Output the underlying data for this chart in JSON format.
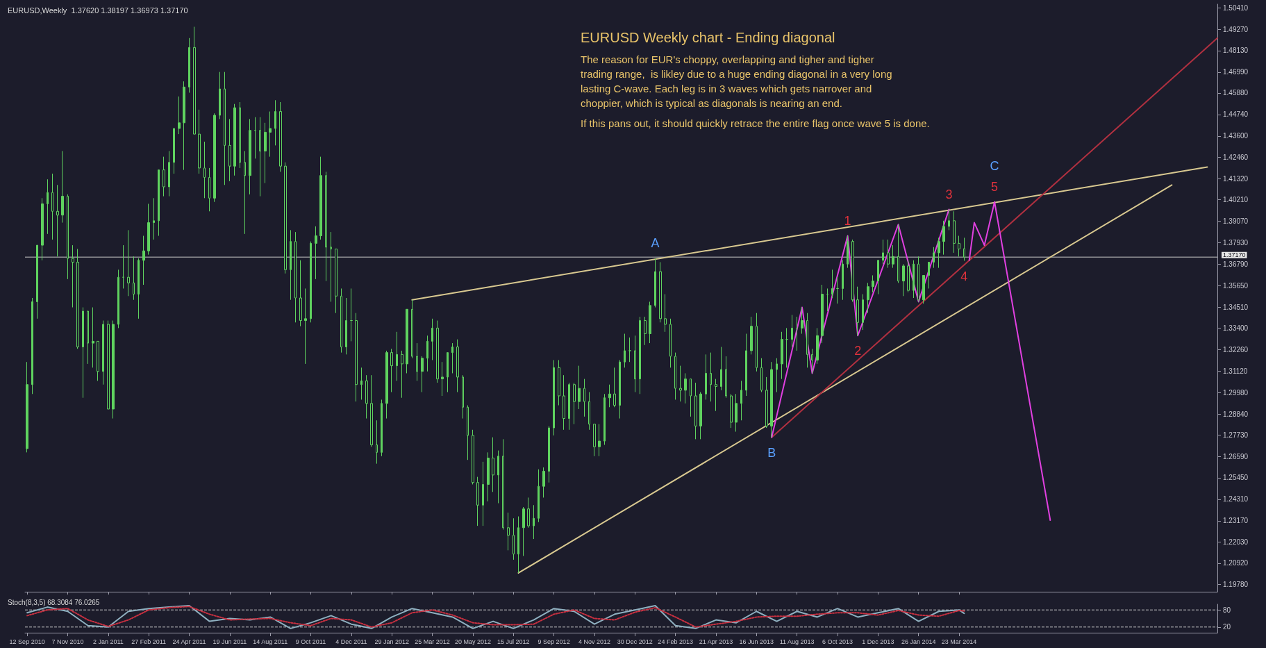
{
  "chart_data": [
    {
      "type": "candlestick",
      "title": "EURUSD,Weekly  1.37620 1.38197 1.36973 1.37170",
      "color": "#5fd35f",
      "marker": "none",
      "tick_labels": "y",
      "x": [
        "2010-09-12",
        "2010-09-19",
        "2010-09-26",
        "2010-10-03",
        "2010-10-10",
        "2010-10-17",
        "2010-10-24",
        "2010-10-31",
        "2010-11-07",
        "2010-11-14",
        "2010-11-21",
        "2010-11-28",
        "2010-12-05",
        "2010-12-12",
        "2010-12-19",
        "2010-12-26",
        "2011-01-02",
        "2011-01-09",
        "2011-01-16",
        "2011-01-23",
        "2011-01-30",
        "2011-02-06",
        "2011-02-13",
        "2011-02-20",
        "2011-02-27",
        "2011-03-06",
        "2011-03-13",
        "2011-03-20",
        "2011-03-27",
        "2011-04-03",
        "2011-04-10",
        "2011-04-17",
        "2011-04-24",
        "2011-05-01",
        "2011-05-08",
        "2011-05-15",
        "2011-05-22",
        "2011-05-29",
        "2011-06-05",
        "2011-06-12",
        "2011-06-19",
        "2011-06-26",
        "2011-07-03",
        "2011-07-10",
        "2011-07-17",
        "2011-07-24",
        "2011-07-31",
        "2011-08-07",
        "2011-08-14",
        "2011-08-21",
        "2011-08-28",
        "2011-09-04",
        "2011-09-11",
        "2011-09-18",
        "2011-09-25",
        "2011-10-02",
        "2011-10-09",
        "2011-10-16",
        "2011-10-23",
        "2011-10-30",
        "2011-11-06",
        "2011-11-13",
        "2011-11-20",
        "2011-11-27",
        "2011-12-04",
        "2011-12-11",
        "2011-12-18",
        "2011-12-25",
        "2012-01-01",
        "2012-01-08",
        "2012-01-15",
        "2012-01-22",
        "2012-01-29",
        "2012-02-05",
        "2012-02-12",
        "2012-02-19",
        "2012-02-26",
        "2012-03-04",
        "2012-03-11",
        "2012-03-18",
        "2012-03-25",
        "2012-04-01",
        "2012-04-08",
        "2012-04-15",
        "2012-04-22",
        "2012-04-29",
        "2012-05-06",
        "2012-05-13",
        "2012-05-20",
        "2012-05-27",
        "2012-06-03",
        "2012-06-10",
        "2012-06-17",
        "2012-06-24",
        "2012-07-01",
        "2012-07-08",
        "2012-07-15",
        "2012-07-22",
        "2012-07-29",
        "2012-08-05",
        "2012-08-12",
        "2012-08-19",
        "2012-08-26",
        "2012-09-02",
        "2012-09-09",
        "2012-09-16",
        "2012-09-23",
        "2012-09-30",
        "2012-10-07",
        "2012-10-14",
        "2012-10-21",
        "2012-10-28",
        "2012-11-04",
        "2012-11-11",
        "2012-11-18",
        "2012-11-25",
        "2012-12-02",
        "2012-12-09",
        "2012-12-16",
        "2012-12-23",
        "2012-12-30",
        "2013-01-06",
        "2013-01-13",
        "2013-01-20",
        "2013-01-27",
        "2013-02-03",
        "2013-02-10",
        "2013-02-17",
        "2013-02-24",
        "2013-03-03",
        "2013-03-10",
        "2013-03-17",
        "2013-03-24",
        "2013-03-31",
        "2013-04-07",
        "2013-04-14",
        "2013-04-21",
        "2013-04-28",
        "2013-05-05",
        "2013-05-12",
        "2013-05-19",
        "2013-05-26",
        "2013-06-02",
        "2013-06-09",
        "2013-06-16",
        "2013-06-23",
        "2013-06-30",
        "2013-07-07",
        "2013-07-14",
        "2013-07-21",
        "2013-07-28",
        "2013-08-04",
        "2013-08-11",
        "2013-08-18",
        "2013-08-25",
        "2013-09-01",
        "2013-09-08",
        "2013-09-15",
        "2013-09-22",
        "2013-09-29",
        "2013-10-06",
        "2013-10-13",
        "2013-10-20",
        "2013-10-27",
        "2013-11-03",
        "2013-11-10",
        "2013-11-17",
        "2013-11-24",
        "2013-12-01",
        "2013-12-08",
        "2013-12-15",
        "2013-12-22",
        "2013-12-29",
        "2014-01-05",
        "2014-01-12",
        "2014-01-19",
        "2014-01-26",
        "2014-02-02",
        "2014-02-09",
        "2014-02-16",
        "2014-02-23",
        "2014-03-02",
        "2014-03-09",
        "2014-03-16",
        "2014-03-23",
        "2014-03-30"
      ],
      "ohlc": [
        [
          1.27,
          1.316,
          1.268,
          1.304
        ],
        [
          1.304,
          1.35,
          1.299,
          1.348
        ],
        [
          1.348,
          1.378,
          1.339,
          1.378
        ],
        [
          1.378,
          1.403,
          1.37,
          1.4
        ],
        [
          1.4,
          1.413,
          1.384,
          1.406
        ],
        [
          1.406,
          1.416,
          1.381,
          1.396
        ],
        [
          1.396,
          1.41,
          1.372,
          1.394
        ],
        [
          1.394,
          1.428,
          1.39,
          1.404
        ],
        [
          1.404,
          1.405,
          1.36,
          1.371
        ],
        [
          1.371,
          1.378,
          1.345,
          1.369
        ],
        [
          1.369,
          1.376,
          1.323,
          1.324
        ],
        [
          1.324,
          1.345,
          1.297,
          1.343
        ],
        [
          1.343,
          1.343,
          1.315,
          1.326
        ],
        [
          1.326,
          1.345,
          1.313,
          1.327
        ],
        [
          1.327,
          1.327,
          1.306,
          1.311
        ],
        [
          1.311,
          1.338,
          1.304,
          1.336
        ],
        [
          1.336,
          1.338,
          1.291,
          1.291
        ],
        [
          1.291,
          1.338,
          1.286,
          1.336
        ],
        [
          1.336,
          1.365,
          1.334,
          1.361
        ],
        [
          1.361,
          1.378,
          1.355,
          1.361
        ],
        [
          1.361,
          1.386,
          1.351,
          1.358
        ],
        [
          1.358,
          1.372,
          1.349,
          1.352
        ],
        [
          1.352,
          1.371,
          1.339,
          1.37
        ],
        [
          1.37,
          1.383,
          1.357,
          1.375
        ],
        [
          1.375,
          1.4,
          1.373,
          1.39
        ],
        [
          1.39,
          1.403,
          1.381,
          1.391
        ],
        [
          1.391,
          1.418,
          1.383,
          1.418
        ],
        [
          1.418,
          1.425,
          1.404,
          1.409
        ],
        [
          1.409,
          1.428,
          1.404,
          1.422
        ],
        [
          1.422,
          1.44,
          1.416,
          1.44
        ],
        [
          1.44,
          1.457,
          1.437,
          1.443
        ],
        [
          1.443,
          1.465,
          1.418,
          1.462
        ],
        [
          1.462,
          1.488,
          1.459,
          1.483
        ],
        [
          1.483,
          1.494,
          1.437,
          1.437
        ],
        [
          1.437,
          1.45,
          1.416,
          1.419
        ],
        [
          1.419,
          1.433,
          1.403,
          1.414
        ],
        [
          1.414,
          1.419,
          1.396,
          1.403
        ],
        [
          1.403,
          1.448,
          1.401,
          1.447
        ],
        [
          1.447,
          1.47,
          1.445,
          1.461
        ],
        [
          1.461,
          1.47,
          1.41,
          1.431
        ],
        [
          1.431,
          1.445,
          1.412,
          1.42
        ],
        [
          1.42,
          1.453,
          1.415,
          1.451
        ],
        [
          1.451,
          1.454,
          1.419,
          1.422
        ],
        [
          1.422,
          1.428,
          1.384,
          1.415
        ],
        [
          1.415,
          1.445,
          1.405,
          1.439
        ],
        [
          1.439,
          1.446,
          1.424,
          1.439
        ],
        [
          1.439,
          1.446,
          1.404,
          1.428
        ],
        [
          1.428,
          1.443,
          1.411,
          1.438
        ],
        [
          1.438,
          1.449,
          1.425,
          1.44
        ],
        [
          1.44,
          1.455,
          1.431,
          1.449
        ],
        [
          1.449,
          1.454,
          1.417,
          1.42
        ],
        [
          1.42,
          1.422,
          1.363,
          1.365
        ],
        [
          1.365,
          1.386,
          1.349,
          1.38
        ],
        [
          1.38,
          1.385,
          1.337,
          1.35
        ],
        [
          1.35,
          1.37,
          1.335,
          1.338
        ],
        [
          1.338,
          1.355,
          1.315,
          1.339
        ],
        [
          1.339,
          1.38,
          1.337,
          1.379
        ],
        [
          1.379,
          1.388,
          1.36,
          1.383
        ],
        [
          1.383,
          1.425,
          1.381,
          1.415
        ],
        [
          1.415,
          1.417,
          1.359,
          1.377
        ],
        [
          1.377,
          1.385,
          1.348,
          1.376
        ],
        [
          1.376,
          1.376,
          1.342,
          1.351
        ],
        [
          1.351,
          1.355,
          1.321,
          1.324
        ],
        [
          1.324,
          1.35,
          1.32,
          1.338
        ],
        [
          1.338,
          1.355,
          1.327,
          1.338
        ],
        [
          1.338,
          1.342,
          1.295,
          1.304
        ],
        [
          1.304,
          1.313,
          1.296,
          1.306
        ],
        [
          1.306,
          1.309,
          1.286,
          1.294
        ],
        [
          1.294,
          1.309,
          1.271,
          1.272
        ],
        [
          1.272,
          1.285,
          1.262,
          1.268
        ],
        [
          1.268,
          1.296,
          1.266,
          1.294
        ],
        [
          1.294,
          1.322,
          1.286,
          1.321
        ],
        [
          1.321,
          1.323,
          1.3,
          1.314
        ],
        [
          1.314,
          1.332,
          1.306,
          1.32
        ],
        [
          1.32,
          1.322,
          1.297,
          1.315
        ],
        [
          1.315,
          1.344,
          1.31,
          1.344
        ],
        [
          1.344,
          1.349,
          1.318,
          1.319
        ],
        [
          1.319,
          1.326,
          1.306,
          1.311
        ],
        [
          1.311,
          1.319,
          1.3,
          1.318
        ],
        [
          1.318,
          1.33,
          1.311,
          1.327
        ],
        [
          1.327,
          1.339,
          1.317,
          1.334
        ],
        [
          1.334,
          1.338,
          1.305,
          1.307
        ],
        [
          1.307,
          1.316,
          1.298,
          1.308
        ],
        [
          1.308,
          1.321,
          1.3,
          1.321
        ],
        [
          1.321,
          1.326,
          1.31,
          1.324
        ],
        [
          1.324,
          1.328,
          1.3,
          1.308
        ],
        [
          1.308,
          1.309,
          1.286,
          1.292
        ],
        [
          1.292,
          1.293,
          1.264,
          1.277
        ],
        [
          1.277,
          1.28,
          1.251,
          1.252
        ],
        [
          1.252,
          1.255,
          1.229,
          1.24
        ],
        [
          1.24,
          1.263,
          1.229,
          1.251
        ],
        [
          1.251,
          1.268,
          1.242,
          1.265
        ],
        [
          1.265,
          1.276,
          1.247,
          1.256
        ],
        [
          1.256,
          1.269,
          1.241,
          1.266
        ],
        [
          1.266,
          1.275,
          1.227,
          1.228
        ],
        [
          1.228,
          1.236,
          1.216,
          1.224
        ],
        [
          1.224,
          1.233,
          1.211,
          1.214
        ],
        [
          1.214,
          1.234,
          1.204,
          1.228
        ],
        [
          1.228,
          1.239,
          1.213,
          1.238
        ],
        [
          1.238,
          1.244,
          1.228,
          1.229
        ],
        [
          1.229,
          1.24,
          1.222,
          1.233
        ],
        [
          1.233,
          1.259,
          1.231,
          1.25
        ],
        [
          1.25,
          1.26,
          1.244,
          1.258
        ],
        [
          1.258,
          1.282,
          1.252,
          1.281
        ],
        [
          1.281,
          1.317,
          1.277,
          1.313
        ],
        [
          1.313,
          1.317,
          1.293,
          1.298
        ],
        [
          1.298,
          1.309,
          1.28,
          1.286
        ],
        [
          1.286,
          1.305,
          1.28,
          1.304
        ],
        [
          1.304,
          1.305,
          1.283,
          1.295
        ],
        [
          1.295,
          1.314,
          1.291,
          1.302
        ],
        [
          1.302,
          1.307,
          1.287,
          1.295
        ],
        [
          1.295,
          1.3,
          1.28,
          1.283
        ],
        [
          1.283,
          1.283,
          1.266,
          1.271
        ],
        [
          1.271,
          1.283,
          1.266,
          1.274
        ],
        [
          1.274,
          1.299,
          1.272,
          1.297
        ],
        [
          1.297,
          1.304,
          1.292,
          1.299
        ],
        [
          1.299,
          1.313,
          1.292,
          1.293
        ],
        [
          1.293,
          1.317,
          1.286,
          1.316
        ],
        [
          1.316,
          1.331,
          1.313,
          1.322
        ],
        [
          1.322,
          1.329,
          1.316,
          1.322
        ],
        [
          1.322,
          1.33,
          1.3,
          1.307
        ],
        [
          1.307,
          1.34,
          1.299,
          1.338
        ],
        [
          1.338,
          1.34,
          1.325,
          1.331
        ],
        [
          1.331,
          1.348,
          1.326,
          1.346
        ],
        [
          1.346,
          1.371,
          1.345,
          1.364
        ],
        [
          1.364,
          1.369,
          1.337,
          1.339
        ],
        [
          1.339,
          1.352,
          1.332,
          1.336
        ],
        [
          1.336,
          1.339,
          1.313,
          1.319
        ],
        [
          1.319,
          1.321,
          1.296,
          1.302
        ],
        [
          1.302,
          1.314,
          1.295,
          1.301
        ],
        [
          1.301,
          1.31,
          1.294,
          1.307
        ],
        [
          1.307,
          1.307,
          1.287,
          1.298
        ],
        [
          1.298,
          1.305,
          1.275,
          1.282
        ],
        [
          1.282,
          1.3,
          1.275,
          1.299
        ],
        [
          1.299,
          1.32,
          1.296,
          1.31
        ],
        [
          1.31,
          1.321,
          1.295,
          1.304
        ],
        [
          1.304,
          1.307,
          1.29,
          1.303
        ],
        [
          1.303,
          1.324,
          1.301,
          1.312
        ],
        [
          1.312,
          1.319,
          1.297,
          1.298
        ],
        [
          1.298,
          1.299,
          1.281,
          1.284
        ],
        [
          1.284,
          1.299,
          1.279,
          1.294
        ],
        [
          1.294,
          1.306,
          1.285,
          1.301
        ],
        [
          1.301,
          1.331,
          1.298,
          1.322
        ],
        [
          1.322,
          1.34,
          1.32,
          1.335
        ],
        [
          1.335,
          1.342,
          1.311,
          1.313
        ],
        [
          1.313,
          1.318,
          1.3,
          1.301
        ],
        [
          1.301,
          1.308,
          1.281,
          1.282
        ],
        [
          1.282,
          1.316,
          1.276,
          1.312
        ],
        [
          1.312,
          1.318,
          1.3,
          1.315
        ],
        [
          1.315,
          1.332,
          1.307,
          1.328
        ],
        [
          1.328,
          1.334,
          1.313,
          1.328
        ],
        [
          1.328,
          1.341,
          1.324,
          1.334
        ],
        [
          1.334,
          1.34,
          1.322,
          1.334
        ],
        [
          1.334,
          1.345,
          1.331,
          1.338
        ],
        [
          1.338,
          1.342,
          1.313,
          1.32
        ],
        [
          1.32,
          1.323,
          1.31,
          1.317
        ],
        [
          1.317,
          1.334,
          1.315,
          1.33
        ],
        [
          1.33,
          1.357,
          1.326,
          1.352
        ],
        [
          1.352,
          1.355,
          1.343,
          1.352
        ],
        [
          1.352,
          1.365,
          1.35,
          1.355
        ],
        [
          1.355,
          1.361,
          1.347,
          1.355
        ],
        [
          1.355,
          1.37,
          1.349,
          1.368
        ],
        [
          1.368,
          1.383,
          1.366,
          1.38
        ],
        [
          1.38,
          1.381,
          1.348,
          1.349
        ],
        [
          1.349,
          1.356,
          1.33,
          1.337
        ],
        [
          1.337,
          1.352,
          1.333,
          1.349
        ],
        [
          1.349,
          1.358,
          1.342,
          1.356
        ],
        [
          1.356,
          1.362,
          1.353,
          1.359
        ],
        [
          1.359,
          1.37,
          1.352,
          1.37
        ],
        [
          1.37,
          1.381,
          1.368,
          1.374
        ],
        [
          1.374,
          1.381,
          1.366,
          1.368
        ],
        [
          1.368,
          1.378,
          1.366,
          1.372
        ],
        [
          1.372,
          1.389,
          1.358,
          1.359
        ],
        [
          1.359,
          1.368,
          1.351,
          1.367
        ],
        [
          1.367,
          1.37,
          1.353,
          1.354
        ],
        [
          1.354,
          1.37,
          1.35,
          1.368
        ],
        [
          1.368,
          1.372,
          1.348,
          1.349
        ],
        [
          1.349,
          1.362,
          1.347,
          1.362
        ],
        [
          1.362,
          1.369,
          1.355,
          1.369
        ],
        [
          1.369,
          1.377,
          1.366,
          1.374
        ],
        [
          1.374,
          1.382,
          1.366,
          1.38
        ],
        [
          1.38,
          1.391,
          1.373,
          1.388
        ],
        [
          1.388,
          1.397,
          1.386,
          1.391
        ],
        [
          1.391,
          1.396,
          1.374,
          1.379
        ],
        [
          1.379,
          1.383,
          1.372,
          1.376
        ],
        [
          1.3762,
          1.38197,
          1.36973,
          1.3717
        ]
      ],
      "series": [
        {
          "type": "line",
          "color": "#d8c890",
          "x": [
            "2012-02-26",
            "2015-03-01"
          ],
          "values": [
            1.349,
            1.4195
          ]
        },
        {
          "type": "line",
          "color": "#d8c890",
          "x": [
            "2012-07-22",
            "2015-01-11"
          ],
          "values": [
            1.204,
            1.41
          ]
        },
        {
          "type": "line",
          "color": "#b03040",
          "x": [
            "2013-07-07",
            "2015-03-15"
          ],
          "values": [
            1.276,
            1.488
          ]
        },
        {
          "type": "line",
          "color": "#e040e0",
          "x": [
            "2013-07-07",
            "2013-08-18",
            "2013-09-01",
            "2013-10-20",
            "2013-11-03",
            "2013-12-29",
            "2014-01-26",
            "2014-03-09"
          ],
          "values": [
            1.276,
            1.345,
            1.31,
            1.383,
            1.33,
            1.389,
            1.348,
            1.397
          ]
        },
        {
          "type": "line",
          "color": "#e040e0",
          "x": [
            "2014-04-06",
            "2014-04-13",
            "2014-04-27",
            "2014-05-11",
            "2014-07-27"
          ],
          "values": [
            1.37,
            1.39,
            1.378,
            1.401,
            1.232
          ]
        }
      ],
      "xlim": [
        "2010-09-09",
        "2015-03-15"
      ],
      "xticks": [
        {
          "value": "2010-09-12",
          "label": null
        },
        {
          "value": "2010-11-07",
          "label": null
        },
        {
          "value": "2011-01-02",
          "label": null
        },
        {
          "value": "2011-02-27",
          "label": null
        },
        {
          "value": "2011-04-24",
          "label": null
        },
        {
          "value": "2011-06-19",
          "label": null
        },
        {
          "value": "2011-08-14",
          "label": null
        },
        {
          "value": "2011-10-09",
          "label": null
        },
        {
          "value": "2011-12-04",
          "label": null
        },
        {
          "value": "2012-01-29",
          "label": null
        },
        {
          "value": "2012-03-25",
          "label": null
        },
        {
          "value": "2012-05-20",
          "label": null
        },
        {
          "value": "2012-07-15",
          "label": null
        },
        {
          "value": "2012-09-09",
          "label": null
        },
        {
          "value": "2012-11-04",
          "label": null
        },
        {
          "value": "2012-12-30",
          "label": null
        },
        {
          "value": "2013-02-24",
          "label": null
        },
        {
          "value": "2013-04-21",
          "label": null
        },
        {
          "value": "2013-06-16",
          "label": null
        },
        {
          "value": "2013-08-11",
          "label": null
        },
        {
          "value": "2013-10-06",
          "label": null
        },
        {
          "value": "2013-12-01",
          "label": null
        },
        {
          "value": "2014-01-26",
          "label": null
        },
        {
          "value": "2014-03-23",
          "label": null
        }
      ],
      "ylim": [
        1.194,
        1.506
      ],
      "yticks": [
        {
          "value": 1.5041,
          "label": "1.50410"
        },
        {
          "value": 1.4927,
          "label": "1.49270"
        },
        {
          "value": 1.4813,
          "label": "1.48130"
        },
        {
          "value": 1.4699,
          "label": "1.46990"
        },
        {
          "value": 1.4588,
          "label": "1.45880"
        },
        {
          "value": 1.4474,
          "label": "1.44740"
        },
        {
          "value": 1.436,
          "label": "1.43600"
        },
        {
          "value": 1.4246,
          "label": "1.42460"
        },
        {
          "value": 1.4132,
          "label": "1.41320"
        },
        {
          "value": 1.4021,
          "label": "1.40210"
        },
        {
          "value": 1.3907,
          "label": "1.39070"
        },
        {
          "value": 1.3793,
          "label": "1.37930"
        },
        {
          "value": 1.3679,
          "label": "1.36790"
        },
        {
          "value": 1.3565,
          "label": "1.35650"
        },
        {
          "value": 1.3451,
          "label": "1.34510"
        },
        {
          "value": 1.334,
          "label": "1.33400"
        },
        {
          "value": 1.3226,
          "label": "1.32260"
        },
        {
          "value": 1.3112,
          "label": "1.31120"
        },
        {
          "value": 1.2998,
          "label": "1.29980"
        },
        {
          "value": 1.2884,
          "label": "1.28840"
        },
        {
          "value": 1.2773,
          "label": "1.27730"
        },
        {
          "value": 1.2659,
          "label": "1.26590"
        },
        {
          "value": 1.2545,
          "label": "1.25450"
        },
        {
          "value": 1.2431,
          "label": "1.24310"
        },
        {
          "value": 1.2317,
          "label": "1.23170"
        },
        {
          "value": 1.2203,
          "label": "1.22030"
        },
        {
          "value": 1.2092,
          "label": "1.20920"
        },
        {
          "value": 1.1978,
          "label": "1.19780"
        }
      ],
      "ref_lines": [
        {
          "axis": "y",
          "value": 1.3717,
          "label": "1.37170",
          "color": "#c8c8c8"
        }
      ],
      "annotations": [
        "EURUSD Weekly chart - Ending diagonal",
        "The reason for EUR's choppy, overlapping and tigher and tigher",
        "trading range,  is likley due to a huge ending diagonal in a very long",
        "lasting C-wave. Each leg is in 3 waves which gets narrover and",
        "choppier, which is typical as diagonals is nearing an end.",
        "If this pans out, it should quickly retrace the entire flag once wave 5 is done.",
        {
          "text": "1",
          "x": "2013-10-20",
          "y": 1.383
        },
        {
          "text": "2",
          "x": "2013-11-03",
          "y": 1.33
        },
        {
          "text": "3",
          "x": "2014-03-09",
          "y": 1.397
        },
        {
          "text": "4",
          "x": "2014-03-30",
          "y": 1.36973
        },
        {
          "text": "5",
          "x": "2014-05-11",
          "y": 1.401
        },
        {
          "text": "A",
          "x": "2013-01-27",
          "y": 1.371
        },
        {
          "text": "B",
          "x": "2013-07-07",
          "y": 1.276
        },
        {
          "text": "C",
          "x": "2014-05-11",
          "y": 1.401
        }
      ]
    },
    {
      "type": "line",
      "title": "Stoch(8,3,5) 68.3084 76.0265",
      "marker": "none",
      "series": [
        {
          "color": "#8fb0c0",
          "line_style": "solid",
          "x": [
            "2010-09-12",
            "2010-10-10",
            "2010-11-07",
            "2010-12-05",
            "2011-01-02",
            "2011-01-30",
            "2011-02-27",
            "2011-03-27",
            "2011-04-24",
            "2011-05-22",
            "2011-06-19",
            "2011-07-17",
            "2011-08-14",
            "2011-09-11",
            "2011-10-09",
            "2011-11-06",
            "2011-12-04",
            "2012-01-01",
            "2012-01-29",
            "2012-02-26",
            "2012-03-25",
            "2012-04-22",
            "2012-05-20",
            "2012-06-17",
            "2012-07-15",
            "2012-08-12",
            "2012-09-09",
            "2012-10-07",
            "2012-11-04",
            "2012-12-02",
            "2012-12-30",
            "2013-01-27",
            "2013-02-24",
            "2013-03-24",
            "2013-04-21",
            "2013-05-19",
            "2013-06-16",
            "2013-07-14",
            "2013-08-11",
            "2013-09-08",
            "2013-10-06",
            "2013-11-03",
            "2013-12-01",
            "2013-12-29",
            "2014-01-26",
            "2014-02-23",
            "2014-03-23",
            "2014-03-30"
          ],
          "values": [
            70,
            90,
            75,
            25,
            20,
            75,
            85,
            90,
            95,
            40,
            50,
            45,
            55,
            15,
            35,
            60,
            30,
            15,
            55,
            85,
            70,
            55,
            15,
            40,
            15,
            45,
            85,
            75,
            30,
            65,
            80,
            95,
            25,
            15,
            45,
            35,
            75,
            40,
            75,
            55,
            85,
            55,
            70,
            85,
            40,
            75,
            80,
            68
          ]
        },
        {
          "color": "#c83040",
          "line_style": "dotted",
          "x": [
            "2010-09-12",
            "2010-10-10",
            "2010-11-07",
            "2010-12-05",
            "2011-01-02",
            "2011-01-30",
            "2011-02-27",
            "2011-03-27",
            "2011-04-24",
            "2011-05-22",
            "2011-06-19",
            "2011-07-17",
            "2011-08-14",
            "2011-09-11",
            "2011-10-09",
            "2011-11-06",
            "2011-12-04",
            "2012-01-01",
            "2012-01-29",
            "2012-02-26",
            "2012-03-25",
            "2012-04-22",
            "2012-05-20",
            "2012-06-17",
            "2012-07-15",
            "2012-08-12",
            "2012-09-09",
            "2012-10-07",
            "2012-11-04",
            "2012-12-02",
            "2012-12-30",
            "2013-01-27",
            "2013-02-24",
            "2013-03-24",
            "2013-04-21",
            "2013-05-19",
            "2013-06-16",
            "2013-07-14",
            "2013-08-11",
            "2013-09-08",
            "2013-10-06",
            "2013-11-03",
            "2013-12-01",
            "2013-12-29",
            "2014-01-26",
            "2014-02-23",
            "2014-03-23",
            "2014-03-30"
          ],
          "values": [
            60,
            80,
            85,
            45,
            22,
            45,
            80,
            88,
            92,
            65,
            45,
            48,
            50,
            35,
            25,
            50,
            45,
            20,
            35,
            70,
            80,
            62,
            35,
            28,
            28,
            30,
            65,
            80,
            50,
            45,
            72,
            88,
            55,
            20,
            30,
            40,
            55,
            58,
            58,
            65,
            70,
            70,
            62,
            78,
            62,
            58,
            78,
            76
          ]
        }
      ],
      "xlim": [
        "2010-09-09",
        "2015-03-15"
      ],
      "xticks": [
        {
          "value": "2010-09-12",
          "label": "12 Sep 2010"
        },
        {
          "value": "2010-11-07",
          "label": "7 Nov 2010"
        },
        {
          "value": "2011-01-02",
          "label": "2 Jan 2011"
        },
        {
          "value": "2011-02-27",
          "label": "27 Feb 2011"
        },
        {
          "value": "2011-04-24",
          "label": "24 Apr 2011"
        },
        {
          "value": "2011-06-19",
          "label": "19 Jun 2011"
        },
        {
          "value": "2011-08-14",
          "label": "14 Aug 2011"
        },
        {
          "value": "2011-10-09",
          "label": "9 Oct 2011"
        },
        {
          "value": "2011-12-04",
          "label": "4 Dec 2011"
        },
        {
          "value": "2012-01-29",
          "label": "29 Jan 2012"
        },
        {
          "value": "2012-03-25",
          "label": "25 Mar 2012"
        },
        {
          "value": "2012-05-20",
          "label": "20 May 2012"
        },
        {
          "value": "2012-07-15",
          "label": "15 Jul 2012"
        },
        {
          "value": "2012-09-09",
          "label": "9 Sep 2012"
        },
        {
          "value": "2012-11-04",
          "label": "4 Nov 2012"
        },
        {
          "value": "2012-12-30",
          "label": "30 Dec 2012"
        },
        {
          "value": "2013-02-24",
          "label": "24 Feb 2013"
        },
        {
          "value": "2013-04-21",
          "label": "21 Apr 2013"
        },
        {
          "value": "2013-06-16",
          "label": "16 Jun 2013"
        },
        {
          "value": "2013-08-11",
          "label": "11 Aug 2013"
        },
        {
          "value": "2013-10-06",
          "label": "6 Oct 2013"
        },
        {
          "value": "2013-12-01",
          "label": "1 Dec 2013"
        },
        {
          "value": "2014-01-26",
          "label": "26 Jan 2014"
        },
        {
          "value": "2014-03-23",
          "label": "23 Mar 2014"
        }
      ],
      "ylim": [
        0,
        100
      ],
      "yticks": [
        20,
        80
      ],
      "ref_lines": [
        {
          "axis": "y",
          "value": 80,
          "label": null,
          "color": "#c8c8c8",
          "line_style": "dashed"
        },
        {
          "axis": "y",
          "value": 20,
          "label": null,
          "color": "#c8c8c8",
          "line_style": "dashed"
        }
      ]
    }
  ]
}
